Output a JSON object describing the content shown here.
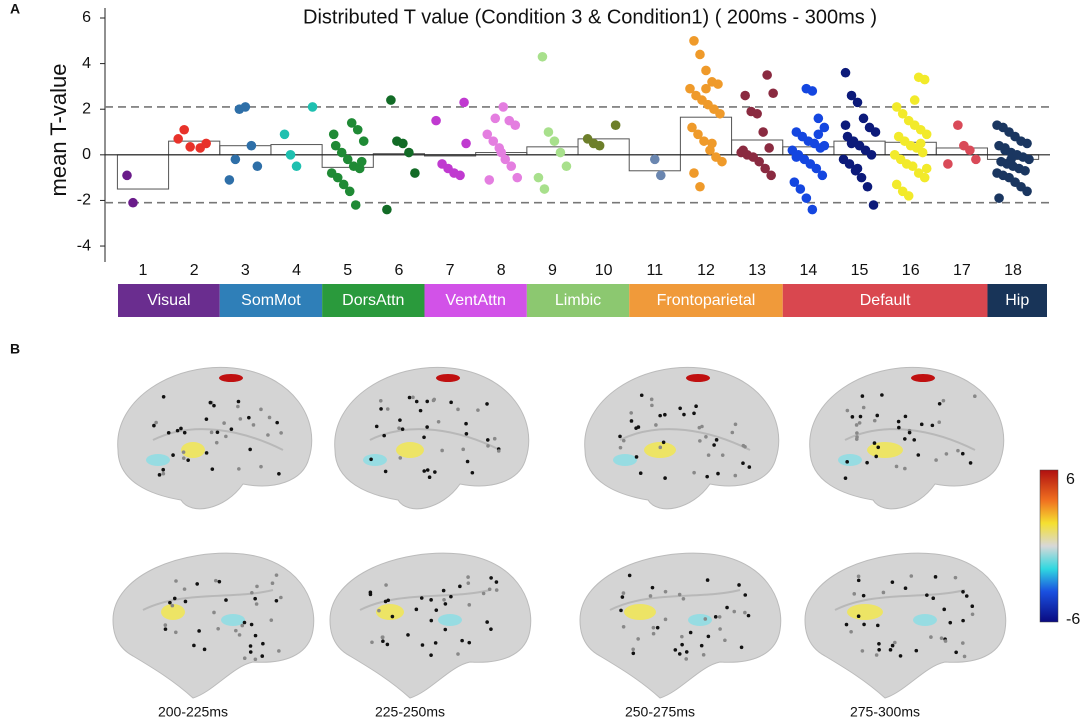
{
  "panel_labels": {
    "a": "A",
    "b": "B"
  },
  "chart_data": {
    "type": "bar_scatter",
    "title": "Distributed T value (Condition 3 & Condition1) ( 200ms - 300ms )",
    "y_label": "mean T-value",
    "categories": [
      "1",
      "2",
      "3",
      "4",
      "5",
      "6",
      "7",
      "8",
      "9",
      "10",
      "11",
      "12",
      "13",
      "14",
      "15",
      "16",
      "17",
      "18"
    ],
    "values": [
      -1.5,
      0.6,
      0.4,
      0.45,
      -0.55,
      0.05,
      -0.05,
      0.1,
      0.35,
      0.7,
      -0.7,
      1.65,
      0.65,
      0.35,
      0.6,
      0.55,
      0.3,
      -0.2
    ],
    "points": [
      [
        -0.9,
        -2.1
      ],
      [
        0.3,
        0.5,
        0.7,
        1.1,
        0.35
      ],
      [
        2.0,
        2.1,
        0.4,
        -0.5,
        -1.1,
        -0.2
      ],
      [
        2.1,
        0.9,
        0.0,
        -0.5
      ],
      [
        1.4,
        1.1,
        0.6,
        0.4,
        0.1,
        -0.2,
        -0.5,
        -0.6,
        -0.8,
        -1.0,
        -1.3,
        -1.6,
        -2.2,
        -0.3,
        0.9
      ],
      [
        2.4,
        0.6,
        0.5,
        0.1,
        -0.8,
        -2.4
      ],
      [
        2.3,
        1.5,
        -0.4,
        -0.6,
        -0.8,
        -0.9,
        0.5
      ],
      [
        2.1,
        1.5,
        1.3,
        0.9,
        0.6,
        0.3,
        -0.2,
        -0.5,
        -1.0,
        -1.1,
        1.6,
        0.1
      ],
      [
        4.3,
        1.0,
        0.6,
        0.1,
        -0.5,
        -1.0,
        -1.5
      ],
      [
        1.3,
        0.7,
        0.5,
        0.4
      ],
      [
        -0.2,
        -0.9
      ],
      [
        5.0,
        4.4,
        3.7,
        3.2,
        3.1,
        2.9,
        2.6,
        2.4,
        2.2,
        2.0,
        1.8,
        1.2,
        0.9,
        0.6,
        0.2,
        -0.1,
        -0.3,
        -0.8,
        -1.4,
        2.9,
        0.5
      ],
      [
        3.5,
        2.7,
        2.6,
        1.9,
        1.8,
        1.0,
        0.3,
        0.1,
        0.0,
        -0.1,
        -0.3,
        -0.6,
        -0.9,
        0.2
      ],
      [
        2.9,
        2.8,
        1.6,
        1.2,
        1.0,
        0.8,
        0.6,
        0.5,
        0.3,
        0.2,
        0.0,
        -0.2,
        -0.4,
        -0.6,
        -0.9,
        -1.2,
        -1.5,
        -1.9,
        -2.4,
        0.9,
        0.4,
        -0.1
      ],
      [
        3.6,
        2.6,
        2.3,
        1.6,
        1.2,
        1.0,
        0.8,
        0.6,
        0.4,
        0.2,
        0.0,
        -0.2,
        -0.4,
        -0.7,
        -1.0,
        -1.4,
        -2.2,
        1.3,
        0.5,
        -0.6
      ],
      [
        3.4,
        3.3,
        2.1,
        1.8,
        1.5,
        1.3,
        1.1,
        0.9,
        0.8,
        0.6,
        0.4,
        0.3,
        0.1,
        0.0,
        -0.2,
        -0.4,
        -0.5,
        -0.8,
        -1.0,
        -1.3,
        -1.6,
        -1.8,
        2.4,
        0.5,
        -0.6
      ],
      [
        1.3,
        0.4,
        0.2,
        -0.2,
        -0.4
      ],
      [
        1.3,
        1.2,
        1.0,
        0.8,
        0.6,
        0.5,
        0.4,
        0.2,
        0.1,
        0.0,
        -0.1,
        -0.2,
        -0.3,
        -0.4,
        -0.5,
        -0.6,
        -0.7,
        -0.8,
        -0.9,
        -1.0,
        -1.2,
        -1.4,
        -1.6,
        -1.9,
        0.3,
        -0.2
      ]
    ],
    "colors": [
      "#6a1b8a",
      "#e8322a",
      "#2e6fa8",
      "#1fc0b0",
      "#1f8a35",
      "#126b26",
      "#c03ad0",
      "#e47ee0",
      "#a8e08c",
      "#6d7f2a",
      "#6a86b0",
      "#ef9a2a",
      "#8a2a40",
      "#1446e0",
      "#0c1a7a",
      "#f2ea2a",
      "#d94a58",
      "#1a3660"
    ],
    "ylim": [
      -4.7,
      6
    ],
    "yticks": [
      6,
      4,
      2,
      0,
      -2,
      -4
    ],
    "hlines": [
      2.1,
      -2.1
    ],
    "networks": [
      {
        "name": "Visual",
        "color": "#6a2d8f",
        "from": "1",
        "to": "2"
      },
      {
        "name": "SomMot",
        "color": "#2f7fb8",
        "from": "3",
        "to": "4"
      },
      {
        "name": "DorsAttn",
        "color": "#2a9a3c",
        "from": "5",
        "to": "6"
      },
      {
        "name": "VentAttn",
        "color": "#d252e8",
        "from": "7",
        "to": "8"
      },
      {
        "name": "Limbic",
        "color": "#8cc870",
        "from": "9",
        "to": "10"
      },
      {
        "name": "Frontoparietal",
        "color": "#f09a3a",
        "from": "11",
        "to": "13"
      },
      {
        "name": "Default",
        "color": "#d9474f",
        "from": "14",
        "to": "17"
      },
      {
        "name": "Hip",
        "color": "#183458",
        "from": "18",
        "to": "18"
      }
    ]
  },
  "panel_b": {
    "time_labels": [
      "200-225ms",
      "225-250ms",
      "250-275ms",
      "275-300ms"
    ],
    "colorbar": {
      "ticks": [
        6,
        -6
      ]
    }
  }
}
